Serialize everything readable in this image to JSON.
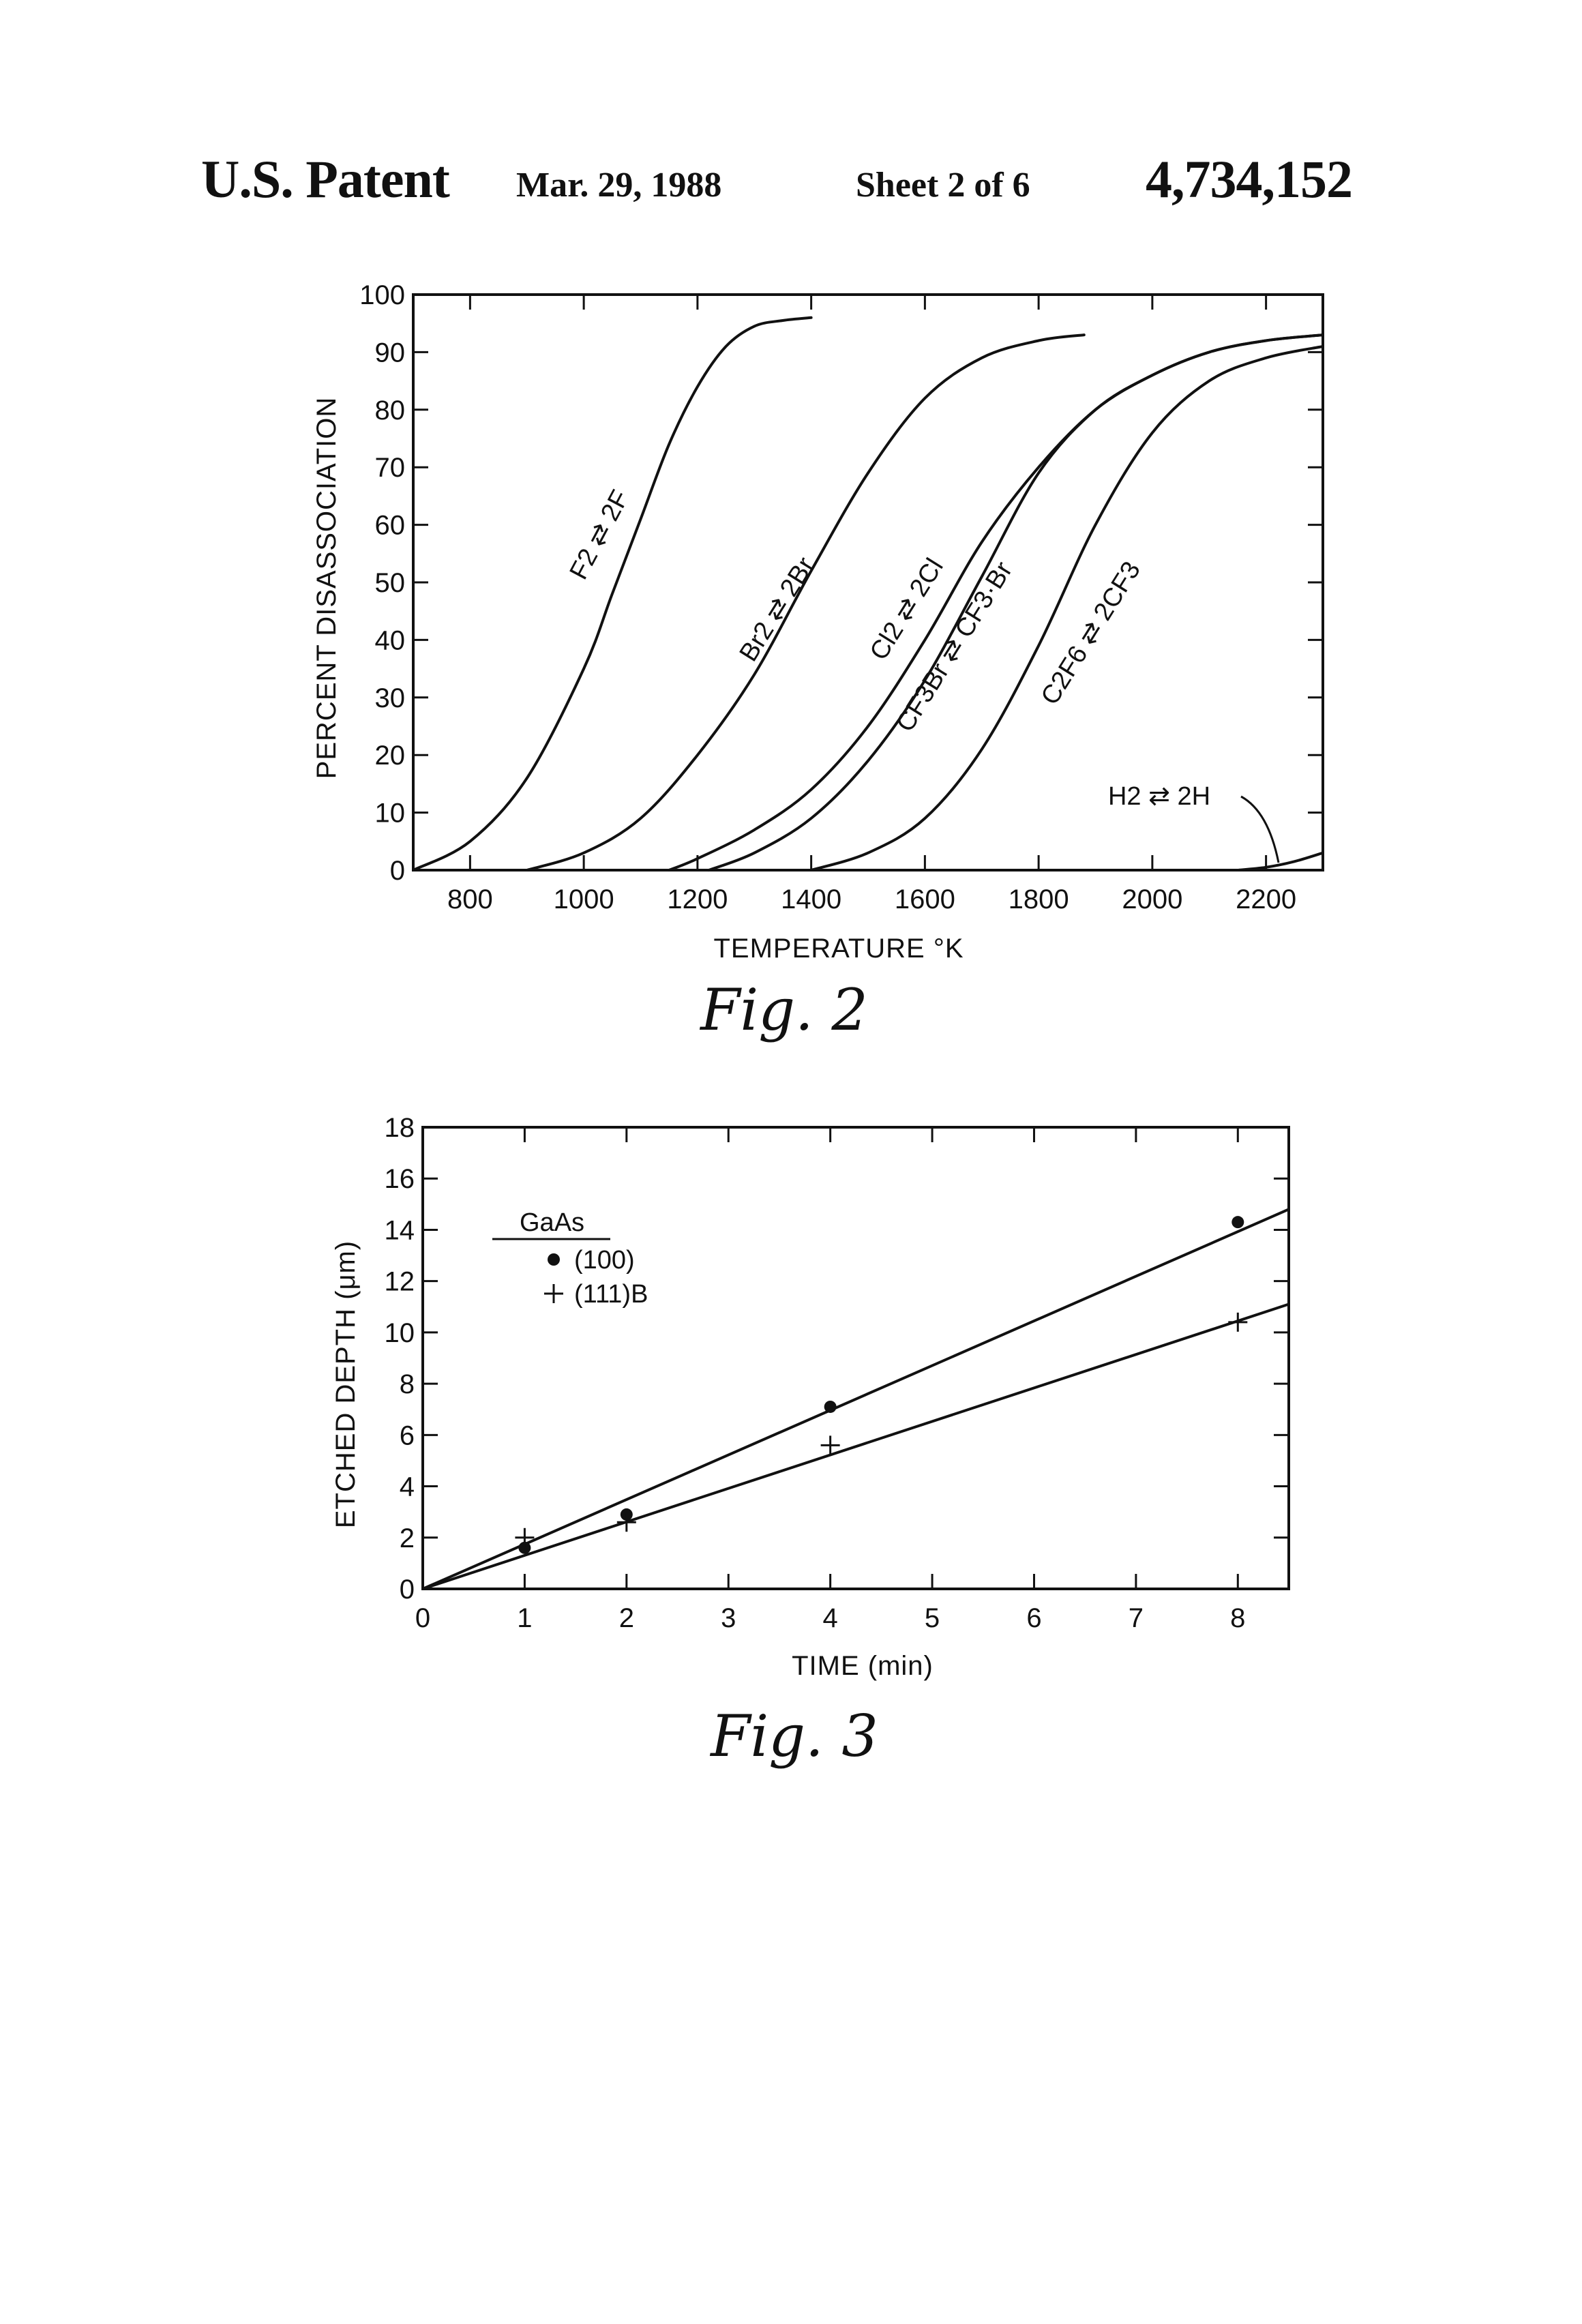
{
  "header": {
    "left": "U.S. Patent",
    "date": "Mar. 29, 1988",
    "sheet": "Sheet 2 of 6",
    "number": "4,734,152"
  },
  "figures": {
    "fig2_caption": "Fig. 2",
    "fig3_caption": "Fig. 3"
  },
  "chart_data": [
    {
      "type": "line",
      "title": "",
      "xlabel": "TEMPERATURE °K",
      "ylabel": "PERCENT DISASSOCIATION",
      "xlim": [
        700,
        2300
      ],
      "ylim": [
        0,
        100
      ],
      "xticks": [
        "800",
        "1000",
        "1200",
        "1400",
        "1600",
        "1800",
        "2000",
        "2200"
      ],
      "yticks": [
        "0",
        "10",
        "20",
        "30",
        "40",
        "50",
        "60",
        "70",
        "80",
        "90",
        "100"
      ],
      "grid": false,
      "series": [
        {
          "name": "F2 ⇄ 2F",
          "x": [
            700,
            800,
            900,
            1000,
            1050,
            1100,
            1150,
            1200,
            1250,
            1300,
            1350,
            1400
          ],
          "y": [
            0,
            5,
            16,
            35,
            48,
            61,
            74,
            84,
            91,
            94.5,
            95.5,
            96
          ]
        },
        {
          "name": "Br2 ⇄ 2Br",
          "x": [
            900,
            1000,
            1100,
            1200,
            1300,
            1400,
            1500,
            1600,
            1700,
            1800,
            1880
          ],
          "y": [
            0,
            3,
            9,
            20,
            34,
            52,
            69,
            82,
            89,
            92,
            93
          ]
        },
        {
          "name": "Cl2 ⇄ 2Cl",
          "x": [
            1150,
            1200,
            1300,
            1400,
            1500,
            1600,
            1700,
            1800,
            1900,
            2000,
            2100,
            2200,
            2300
          ],
          "y": [
            0,
            2,
            7,
            14,
            25,
            40,
            57,
            70,
            80,
            86,
            90,
            92,
            93
          ]
        },
        {
          "name": "CF3Br ⇄ CF3·Br",
          "x": [
            1220,
            1300,
            1400,
            1500,
            1600,
            1700,
            1800,
            1900,
            2000,
            2100,
            2200,
            2300
          ],
          "y": [
            0,
            3,
            9,
            19,
            33,
            51,
            69,
            80,
            86,
            90,
            92,
            93
          ]
        },
        {
          "name": "C2F6 ⇄ 2CF3",
          "x": [
            1400,
            1500,
            1600,
            1700,
            1800,
            1900,
            2000,
            2100,
            2200,
            2300
          ],
          "y": [
            0,
            3,
            9,
            21,
            39,
            60,
            76,
            85,
            89,
            91
          ]
        },
        {
          "name": "H2 ⇄ 2H",
          "x": [
            2150,
            2200,
            2250,
            2300
          ],
          "y": [
            0,
            0.5,
            1.5,
            3
          ]
        }
      ]
    },
    {
      "type": "scatter",
      "title": "",
      "xlabel": "TIME (min)",
      "ylabel": "ETCHED DEPTH (μm)",
      "xlim": [
        0,
        8.5
      ],
      "ylim": [
        0,
        18
      ],
      "xticks": [
        "0",
        "1",
        "2",
        "3",
        "4",
        "5",
        "6",
        "7",
        "8"
      ],
      "yticks": [
        "0",
        "2",
        "4",
        "6",
        "8",
        "10",
        "12",
        "14",
        "16",
        "18"
      ],
      "grid": false,
      "legend_title": "GaAs",
      "legend_position": "top-left",
      "series": [
        {
          "name": "(100)",
          "marker": "dot",
          "x": [
            1,
            2,
            4,
            8
          ],
          "y": [
            1.6,
            2.9,
            7.1,
            14.3
          ],
          "fit": [
            [
              0,
              0
            ],
            [
              8.5,
              14.8
            ]
          ]
        },
        {
          "name": "(111)B",
          "marker": "plus",
          "x": [
            1,
            2,
            4,
            8
          ],
          "y": [
            2.0,
            2.6,
            5.6,
            10.4
          ],
          "fit": [
            [
              0,
              0
            ],
            [
              8.5,
              11.1
            ]
          ]
        }
      ]
    }
  ]
}
